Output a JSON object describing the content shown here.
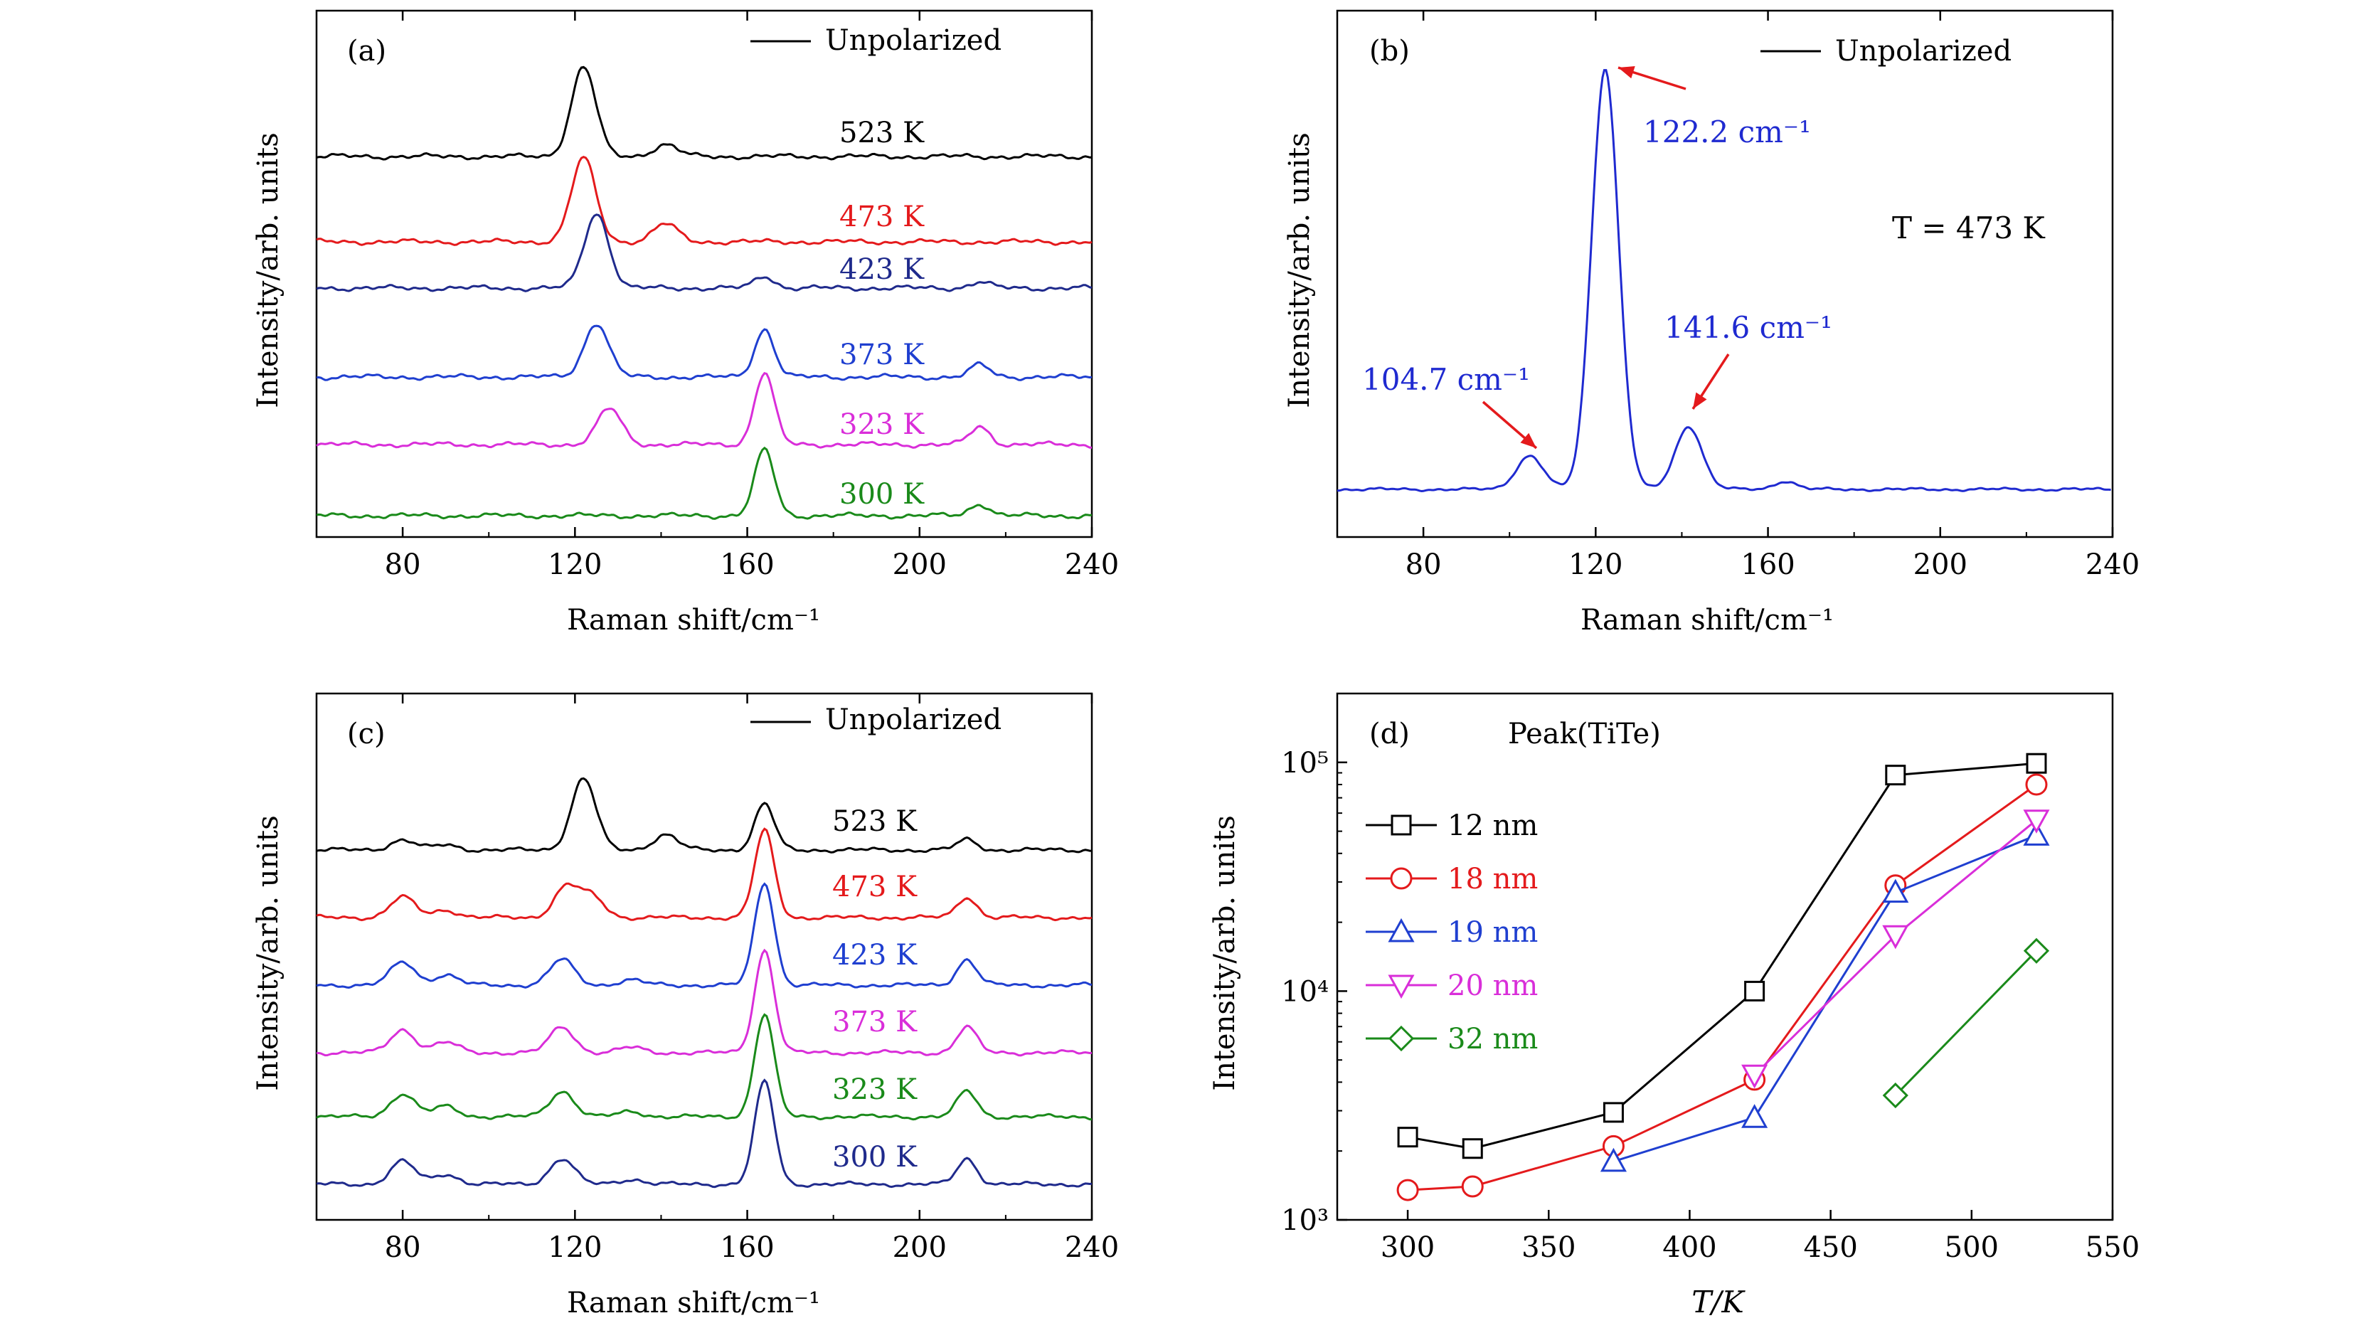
{
  "panels": {
    "a": {
      "label": "(a)",
      "legend": "Unpolarized",
      "xlabel": "Raman shift/cm⁻¹",
      "ylabel": "Intensity/arb. units"
    },
    "b": {
      "label": "(b)",
      "legend": "Unpolarized",
      "xlabel": "Raman shift/cm⁻¹",
      "ylabel": "Intensity/arb. units",
      "temperature_note": "T = 473 K",
      "annotations": [
        "122.2 cm⁻¹",
        "104.7 cm⁻¹",
        "141.6 cm⁻¹"
      ]
    },
    "c": {
      "label": "(c)",
      "legend": "Unpolarized",
      "xlabel": "Raman shift/cm⁻¹",
      "ylabel": "Intensity/arb. units"
    },
    "d": {
      "label": "(d)",
      "legend_title": "Peak(TiTe)",
      "xlabel": "T/K",
      "ylabel": "Intensity/arb. units"
    }
  },
  "chart_data": [
    {
      "panel": "a",
      "type": "line",
      "x_ticks": [
        80,
        120,
        160,
        200,
        240
      ],
      "xlim": [
        60,
        240
      ],
      "y_ticks": [],
      "series": [
        {
          "name": "523 K",
          "color": "#000000",
          "peaks": [
            [
              122,
              30
            ],
            [
              141,
              4
            ]
          ]
        },
        {
          "name": "473 K",
          "color": "#e41a1c",
          "peaks": [
            [
              122,
              28
            ],
            [
              141,
              6
            ]
          ]
        },
        {
          "name": "423 K",
          "color": "#1f2a8c",
          "peaks": [
            [
              125,
              25
            ],
            [
              164,
              4
            ],
            [
              214,
              2
            ]
          ]
        },
        {
          "name": "373 K",
          "color": "#1f3fd0",
          "peaks": [
            [
              125,
              18
            ],
            [
              164,
              16
            ],
            [
              214,
              4
            ]
          ]
        },
        {
          "name": "323 K",
          "color": "#d92ed9",
          "peaks": [
            [
              128,
              12
            ],
            [
              164,
              24
            ],
            [
              214,
              6
            ]
          ]
        },
        {
          "name": "300 K",
          "color": "#1a8a1a",
          "peaks": [
            [
              164,
              22
            ],
            [
              214,
              4
            ]
          ]
        }
      ]
    },
    {
      "panel": "b",
      "type": "line",
      "x_ticks": [
        80,
        120,
        160,
        200,
        240
      ],
      "xlim": [
        60,
        240
      ],
      "series": [
        {
          "name": "Unpolarized",
          "color": "#1f2ad0",
          "peaks": [
            [
              104.7,
              8
            ],
            [
              122.2,
              100
            ],
            [
              141.6,
              15
            ],
            [
              164,
              2
            ]
          ]
        }
      ]
    },
    {
      "panel": "c",
      "type": "line",
      "x_ticks": [
        80,
        120,
        160,
        200,
        240
      ],
      "xlim": [
        60,
        240
      ],
      "series": [
        {
          "name": "523 K",
          "color": "#000000"
        },
        {
          "name": "473 K",
          "color": "#e41a1c"
        },
        {
          "name": "423 K",
          "color": "#1f3fd0"
        },
        {
          "name": "373 K",
          "color": "#d92ed9"
        },
        {
          "name": "323 K",
          "color": "#1a8a1a"
        },
        {
          "name": "300 K",
          "color": "#1f2a8c"
        }
      ]
    },
    {
      "panel": "d",
      "type": "scatter",
      "log_y": true,
      "xlim": [
        275,
        550
      ],
      "x_ticks": [
        300,
        350,
        400,
        450,
        500,
        550
      ],
      "ylim": [
        1000,
        200000
      ],
      "y_ticks": [
        1000,
        10000,
        100000
      ],
      "y_tick_labels": [
        "10³",
        "10⁴",
        "10⁵"
      ],
      "series": [
        {
          "name": "12 nm",
          "color": "#000000",
          "marker": "square",
          "x": [
            300,
            323,
            373,
            423,
            473,
            523
          ],
          "y": [
            2300,
            2050,
            2950,
            10000,
            88000,
            99000
          ]
        },
        {
          "name": "18 nm",
          "color": "#e41a1c",
          "marker": "circle",
          "x": [
            300,
            323,
            373,
            423,
            473,
            523
          ],
          "y": [
            1350,
            1400,
            2100,
            4100,
            29000,
            80000
          ]
        },
        {
          "name": "19 nm",
          "color": "#1f3fd0",
          "marker": "triangle-up",
          "x": [
            373,
            423,
            473,
            523
          ],
          "y": [
            1800,
            2800,
            27000,
            48000
          ]
        },
        {
          "name": "20 nm",
          "color": "#d92ed9",
          "marker": "triangle-down",
          "x": [
            423,
            473,
            523
          ],
          "y": [
            4300,
            17500,
            56000
          ]
        },
        {
          "name": "32 nm",
          "color": "#1a8a1a",
          "marker": "diamond",
          "x": [
            473,
            523
          ],
          "y": [
            3500,
            15000
          ]
        }
      ]
    }
  ]
}
